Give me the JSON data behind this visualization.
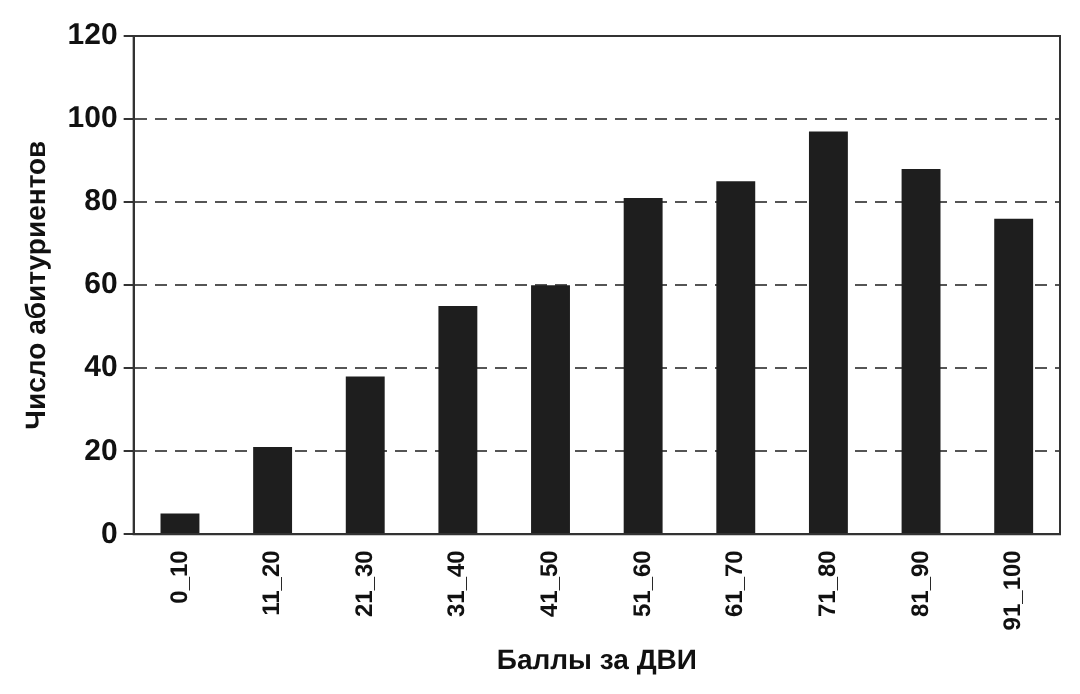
{
  "chart_data": {
    "type": "bar",
    "xlabel": "Баллы за ДВИ",
    "ylabel": "Число абитуриентов",
    "categories": [
      "0_10",
      "11_20",
      "21_30",
      "31_40",
      "41_50",
      "51_60",
      "61_70",
      "71_80",
      "81_90",
      "91_100"
    ],
    "values": [
      5,
      21,
      38,
      55,
      60,
      81,
      85,
      97,
      88,
      76
    ],
    "color": "#1e1e1e",
    "ylim": [
      0,
      120
    ],
    "yticks": [
      0,
      20,
      40,
      60,
      80,
      100,
      120
    ],
    "grid": "y",
    "legend": false
  }
}
